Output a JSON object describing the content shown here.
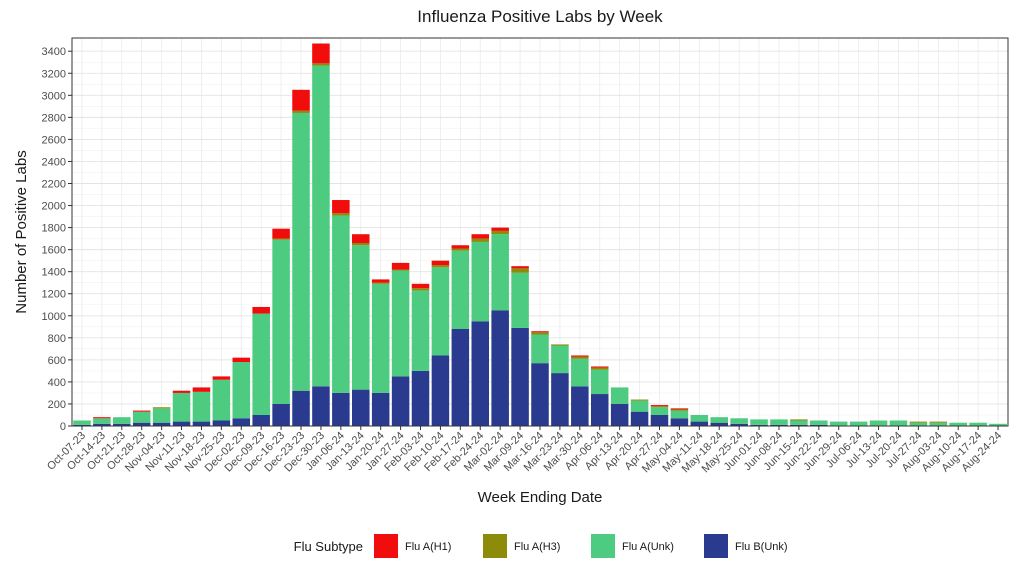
{
  "chart_data": {
    "type": "stacked-bar",
    "title": "Influenza Positive Labs by Week",
    "x_label": "Week Ending Date",
    "y_label": "Number of Positive Labs",
    "legend_title": "Flu Subtype",
    "legend_position": "bottom",
    "grid": true,
    "categories": [
      "Oct-07-23",
      "Oct-14-23",
      "Oct-21-23",
      "Oct-28-23",
      "Nov-04-23",
      "Nov-11-23",
      "Nov-18-23",
      "Nov-25-23",
      "Dec-02-23",
      "Dec-09-23",
      "Dec-16-23",
      "Dec-23-23",
      "Dec-30-23",
      "Jan-06-24",
      "Jan-13-24",
      "Jan-20-24",
      "Jan-27-24",
      "Feb-03-24",
      "Feb-10-24",
      "Feb-17-24",
      "Feb-24-24",
      "Mar-02-24",
      "Mar-09-24",
      "Mar-16-24",
      "Mar-23-24",
      "Mar-30-24",
      "Apr-06-24",
      "Apr-13-24",
      "Apr-20-24",
      "Apr-27-24",
      "May-04-24",
      "May-11-24",
      "May-18-24",
      "May-25-24",
      "Jun-01-24",
      "Jun-08-24",
      "Jun-15-24",
      "Jun-22-24",
      "Jun-29-24",
      "Jul-06-24",
      "Jul-13-24",
      "Jul-20-24",
      "Jul-27-24",
      "Aug-03-24",
      "Aug-10-24",
      "Aug-17-24",
      "Aug-24-24"
    ],
    "series": [
      {
        "name": "Flu A(H1)",
        "color": "#f20d0d",
        "values": [
          0,
          10,
          0,
          10,
          0,
          20,
          40,
          30,
          40,
          60,
          90,
          190,
          180,
          120,
          80,
          30,
          60,
          40,
          40,
          30,
          40,
          30,
          20,
          10,
          0,
          10,
          10,
          0,
          0,
          10,
          10,
          0,
          0,
          0,
          0,
          0,
          0,
          0,
          0,
          0,
          0,
          0,
          0,
          0,
          0,
          0,
          0
        ]
      },
      {
        "name": "Flu A(H3)",
        "color": "#8c8c0a",
        "values": [
          0,
          0,
          0,
          0,
          10,
          0,
          0,
          0,
          0,
          0,
          10,
          20,
          20,
          20,
          20,
          10,
          10,
          20,
          20,
          20,
          30,
          30,
          40,
          20,
          10,
          20,
          20,
          0,
          10,
          10,
          10,
          0,
          0,
          0,
          0,
          0,
          10,
          0,
          0,
          0,
          0,
          0,
          10,
          10,
          0,
          0,
          0
        ]
      },
      {
        "name": "Flu A(Unk)",
        "color": "#4dcb80",
        "values": [
          40,
          50,
          60,
          100,
          130,
          260,
          270,
          370,
          510,
          920,
          1490,
          2520,
          2910,
          1610,
          1310,
          990,
          960,
          730,
          800,
          710,
          720,
          690,
          500,
          260,
          250,
          250,
          220,
          150,
          100,
          70,
          70,
          60,
          50,
          50,
          50,
          50,
          40,
          40,
          40,
          40,
          50,
          50,
          30,
          30,
          30,
          30,
          20
        ]
      },
      {
        "name": "Flu B(Unk)",
        "color": "#2a3b8f",
        "values": [
          10,
          20,
          20,
          30,
          30,
          40,
          40,
          50,
          70,
          100,
          200,
          320,
          360,
          300,
          330,
          300,
          450,
          500,
          640,
          880,
          950,
          1050,
          890,
          570,
          480,
          360,
          290,
          200,
          130,
          100,
          70,
          40,
          30,
          20,
          10,
          10,
          10,
          10,
          0,
          0,
          0,
          0,
          0,
          0,
          0,
          0,
          0
        ]
      }
    ],
    "ylim": [
      0,
      3520
    ],
    "yticks": [
      0,
      200,
      400,
      600,
      800,
      1000,
      1200,
      1400,
      1600,
      1800,
      2000,
      2200,
      2400,
      2600,
      2800,
      3000,
      3200,
      3400
    ]
  }
}
